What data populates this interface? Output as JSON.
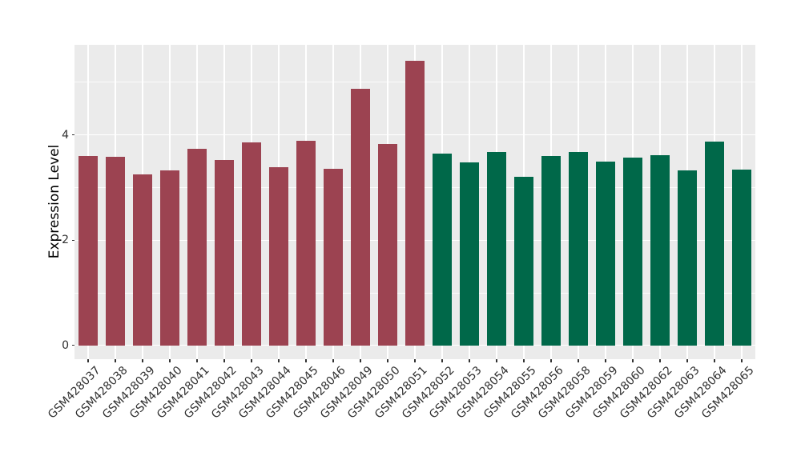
{
  "chart_data": {
    "type": "bar",
    "title": "",
    "xlabel": "",
    "ylabel": "Expression Level",
    "legend_position": "none",
    "grid": true,
    "panel_bg": "#EBEBEB",
    "grid_color": "#FFFFFF",
    "axis_text_color": "#303030",
    "tick_mark_color": "#333333",
    "yticks": [
      0,
      2,
      4
    ],
    "minor_gridlines": [
      1,
      3,
      5
    ],
    "ylim": [
      -0.26,
      5.71
    ],
    "bar_width_ratio": 0.72,
    "categories": [
      "GSM428037",
      "GSM428038",
      "GSM428039",
      "GSM428040",
      "GSM428041",
      "GSM428042",
      "GSM428043",
      "GSM428044",
      "GSM428045",
      "GSM428046",
      "GSM428049",
      "GSM428050",
      "GSM428051",
      "GSM428052",
      "GSM428053",
      "GSM428054",
      "GSM428055",
      "GSM428056",
      "GSM428058",
      "GSM428059",
      "GSM428060",
      "GSM428062",
      "GSM428063",
      "GSM428064",
      "GSM428065"
    ],
    "values": [
      3.6,
      3.59,
      3.25,
      3.32,
      3.74,
      3.52,
      3.85,
      3.38,
      3.89,
      3.36,
      4.87,
      3.82,
      5.41,
      3.65,
      3.48,
      3.68,
      3.21,
      3.6,
      3.67,
      3.49,
      3.57,
      3.61,
      3.33,
      3.87,
      3.34
    ],
    "group_of_bar": [
      "group1",
      "group1",
      "group1",
      "group1",
      "group1",
      "group1",
      "group1",
      "group1",
      "group1",
      "group1",
      "group1",
      "group1",
      "group1",
      "group2",
      "group2",
      "group2",
      "group2",
      "group2",
      "group2",
      "group2",
      "group2",
      "group2",
      "group2",
      "group2",
      "group2"
    ],
    "group_colors": {
      "group1": "#9C4351",
      "group2": "#006849"
    }
  }
}
